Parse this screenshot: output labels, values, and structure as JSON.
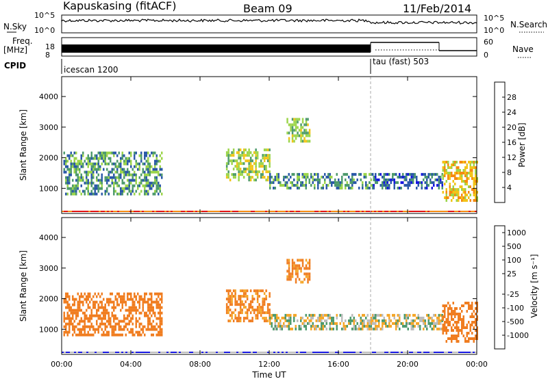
{
  "header": {
    "station": "Kapuskasing (fitACF)",
    "beam": "Beam 09",
    "date": "11/Feb/2014"
  },
  "panels": {
    "nsky": {
      "left_label": "N.Sky",
      "right_label": "N.Search",
      "left_ticks": [
        "10^5",
        "10^0"
      ],
      "right_ticks": [
        "10^5",
        "10^0"
      ]
    },
    "freq": {
      "left_label_1": "Freq.",
      "left_label_2": "[MHz]",
      "right_label": "Nave",
      "left_ticks": [
        "18",
        "8"
      ],
      "right_ticks": [
        "60",
        "0"
      ]
    },
    "cpid": {
      "label": "CPID",
      "modes": [
        "icescan 1200",
        "tau (fast) 503"
      ]
    }
  },
  "colorbars": {
    "power": {
      "label": "Power [dB]",
      "ticks": [
        "28",
        "24",
        "20",
        "16",
        "12",
        "8",
        "4"
      ],
      "colors": [
        "#e01010",
        "#f05010",
        "#f58a10",
        "#f2c418",
        "#9cd54a",
        "#4d9a6c",
        "#2a58a8",
        "#1515e0"
      ]
    },
    "velocity": {
      "label": "Velocity [m s⁻¹]",
      "ticks": [
        "1000",
        "500",
        "100",
        "25",
        "-25",
        "-100",
        "-500",
        "-1000"
      ],
      "colors": [
        "#1515e0",
        "#2a58a8",
        "#4d9a6c",
        "#44c448",
        "#bcbcbc",
        "#f5a628",
        "#f07d20",
        "#ea4a18",
        "#e01010"
      ]
    }
  },
  "chart_data": [
    {
      "type": "heatmap",
      "name": "power",
      "xlabel": "",
      "ylabel": "Slant Range [km]",
      "x_ticks": [
        "00:00",
        "04:00",
        "08:00",
        "12:00",
        "16:00",
        "20:00",
        "00:00"
      ],
      "y_ticks": [
        "1000",
        "2000",
        "3000",
        "4000"
      ],
      "ylim": [
        180,
        4650
      ],
      "xlim_hours": [
        0,
        24
      ],
      "mode_change_hour": 18.0,
      "echo_regions": [
        {
          "t0": 0.1,
          "t1": 5.8,
          "r0": 800,
          "r1": 2200,
          "level": 10
        },
        {
          "t0": 9.5,
          "t1": 12.0,
          "r0": 1300,
          "r1": 2300,
          "level": 14
        },
        {
          "t0": 12.0,
          "t1": 18.0,
          "r0": 1000,
          "r1": 1500,
          "level": 9
        },
        {
          "t0": 13.0,
          "t1": 14.3,
          "r0": 2500,
          "r1": 3300,
          "level": 13
        },
        {
          "t0": 18.0,
          "t1": 22.0,
          "r0": 1000,
          "r1": 1500,
          "level": 7
        },
        {
          "t0": 22.0,
          "t1": 24.0,
          "r0": 600,
          "r1": 1900,
          "level": 18
        }
      ]
    },
    {
      "type": "heatmap",
      "name": "velocity",
      "xlabel": "Time UT",
      "ylabel": "Slant Range [km]",
      "x_ticks": [
        "00:00",
        "04:00",
        "08:00",
        "12:00",
        "16:00",
        "20:00",
        "00:00"
      ],
      "y_ticks": [
        "1000",
        "2000",
        "3000",
        "4000"
      ],
      "ylim": [
        180,
        4650
      ],
      "xlim_hours": [
        0,
        24
      ],
      "mode_change_hour": 18.0,
      "echo_regions": [
        {
          "t0": 0.1,
          "t1": 5.8,
          "r0": 800,
          "r1": 2200,
          "velocity": -400
        },
        {
          "t0": 9.5,
          "t1": 12.0,
          "r0": 1300,
          "r1": 2300,
          "velocity": -150
        },
        {
          "t0": 12.0,
          "t1": 18.0,
          "r0": 1000,
          "r1": 1500,
          "velocity": 0
        },
        {
          "t0": 13.0,
          "t1": 14.3,
          "r0": 2500,
          "r1": 3300,
          "velocity": -150
        },
        {
          "t0": 18.0,
          "t1": 22.0,
          "r0": 1000,
          "r1": 1500,
          "velocity": 0
        },
        {
          "t0": 22.0,
          "t1": 24.0,
          "r0": 600,
          "r1": 1900,
          "velocity": -300
        }
      ]
    }
  ]
}
